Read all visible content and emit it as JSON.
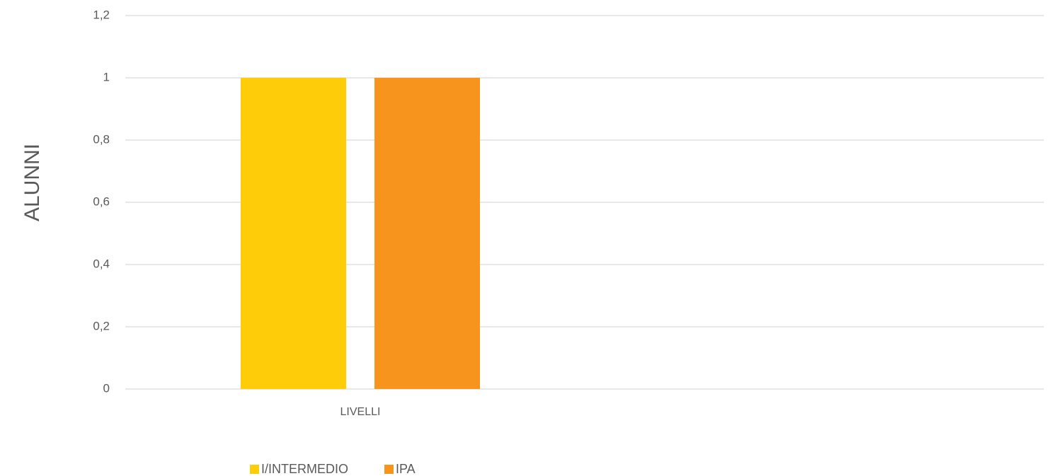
{
  "chart_data": {
    "type": "bar",
    "title": "",
    "xlabel": "",
    "ylabel": "ALUNNI",
    "categories": [
      "LIVELLI"
    ],
    "series": [
      {
        "name": "I/INTERMEDIO",
        "values": [
          1
        ],
        "color": "#FFCC0A"
      },
      {
        "name": "IPA",
        "values": [
          1
        ],
        "color": "#F7941E"
      }
    ],
    "ylim": [
      0,
      1.2
    ],
    "yticks": [
      "0",
      "0,2",
      "0,4",
      "0,6",
      "0,8",
      "1",
      "1,2"
    ],
    "grid": true,
    "gridline_color": "#D9D9D9",
    "legend_position": "bottom"
  }
}
